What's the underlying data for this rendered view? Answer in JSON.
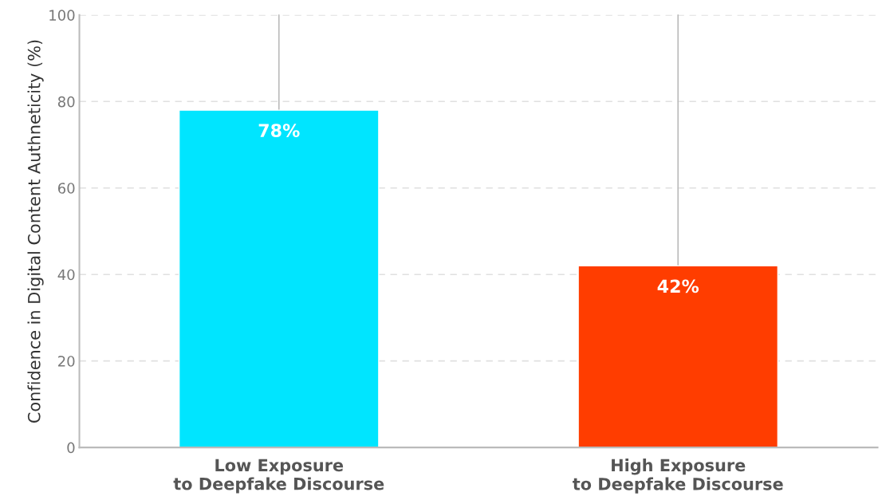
{
  "chart_data": {
    "type": "bar",
    "categories": [
      "Low Exposure\nto Deepfake Discourse",
      "High Exposure\nto Deepfake Discourse"
    ],
    "values": [
      78,
      42
    ],
    "colors": [
      "#00e5ff",
      "#ff3d00"
    ],
    "errors": [
      [
        78,
        100
      ],
      [
        42,
        100
      ]
    ],
    "value_labels": [
      "78%",
      "42%"
    ],
    "ylabel": "Confidence in Digital Content Authneticity (%)",
    "ylim": [
      0,
      100
    ],
    "yticks": [
      0,
      20,
      40,
      60,
      80,
      100
    ],
    "grid": "y",
    "legend": false
  }
}
